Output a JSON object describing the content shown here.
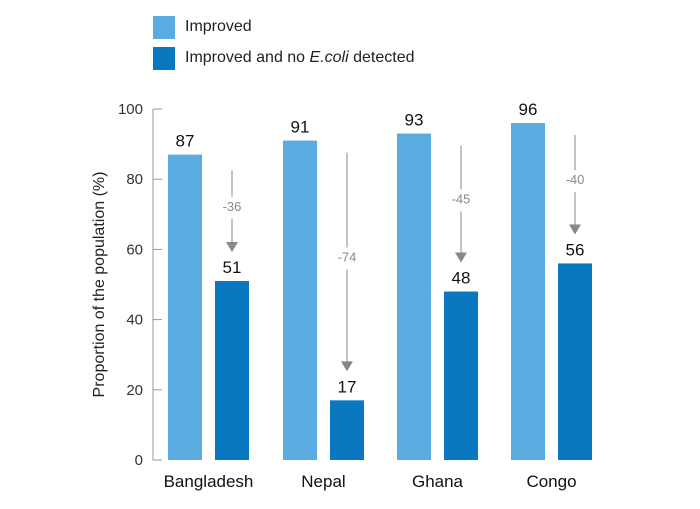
{
  "chart_data": {
    "type": "bar",
    "title": "",
    "xlabel": "",
    "ylabel": "Proportion of the population (%)",
    "ylim": [
      0,
      100
    ],
    "yticks": [
      0,
      20,
      40,
      60,
      80,
      100
    ],
    "categories": [
      "Bangladesh",
      "Nepal",
      "Ghana",
      "Congo"
    ],
    "series": [
      {
        "name": "Improved",
        "color": "#5aabe0",
        "values": [
          87,
          91,
          93,
          96
        ]
      },
      {
        "name_prefix": "Improved and no ",
        "name_italic": "E.coli",
        "name_suffix": " detected",
        "color": "#0a78c0",
        "values": [
          51,
          17,
          48,
          56
        ]
      }
    ],
    "differences": [
      "-36",
      "-74",
      "-45",
      "-40"
    ],
    "legend_position": "top-left"
  }
}
